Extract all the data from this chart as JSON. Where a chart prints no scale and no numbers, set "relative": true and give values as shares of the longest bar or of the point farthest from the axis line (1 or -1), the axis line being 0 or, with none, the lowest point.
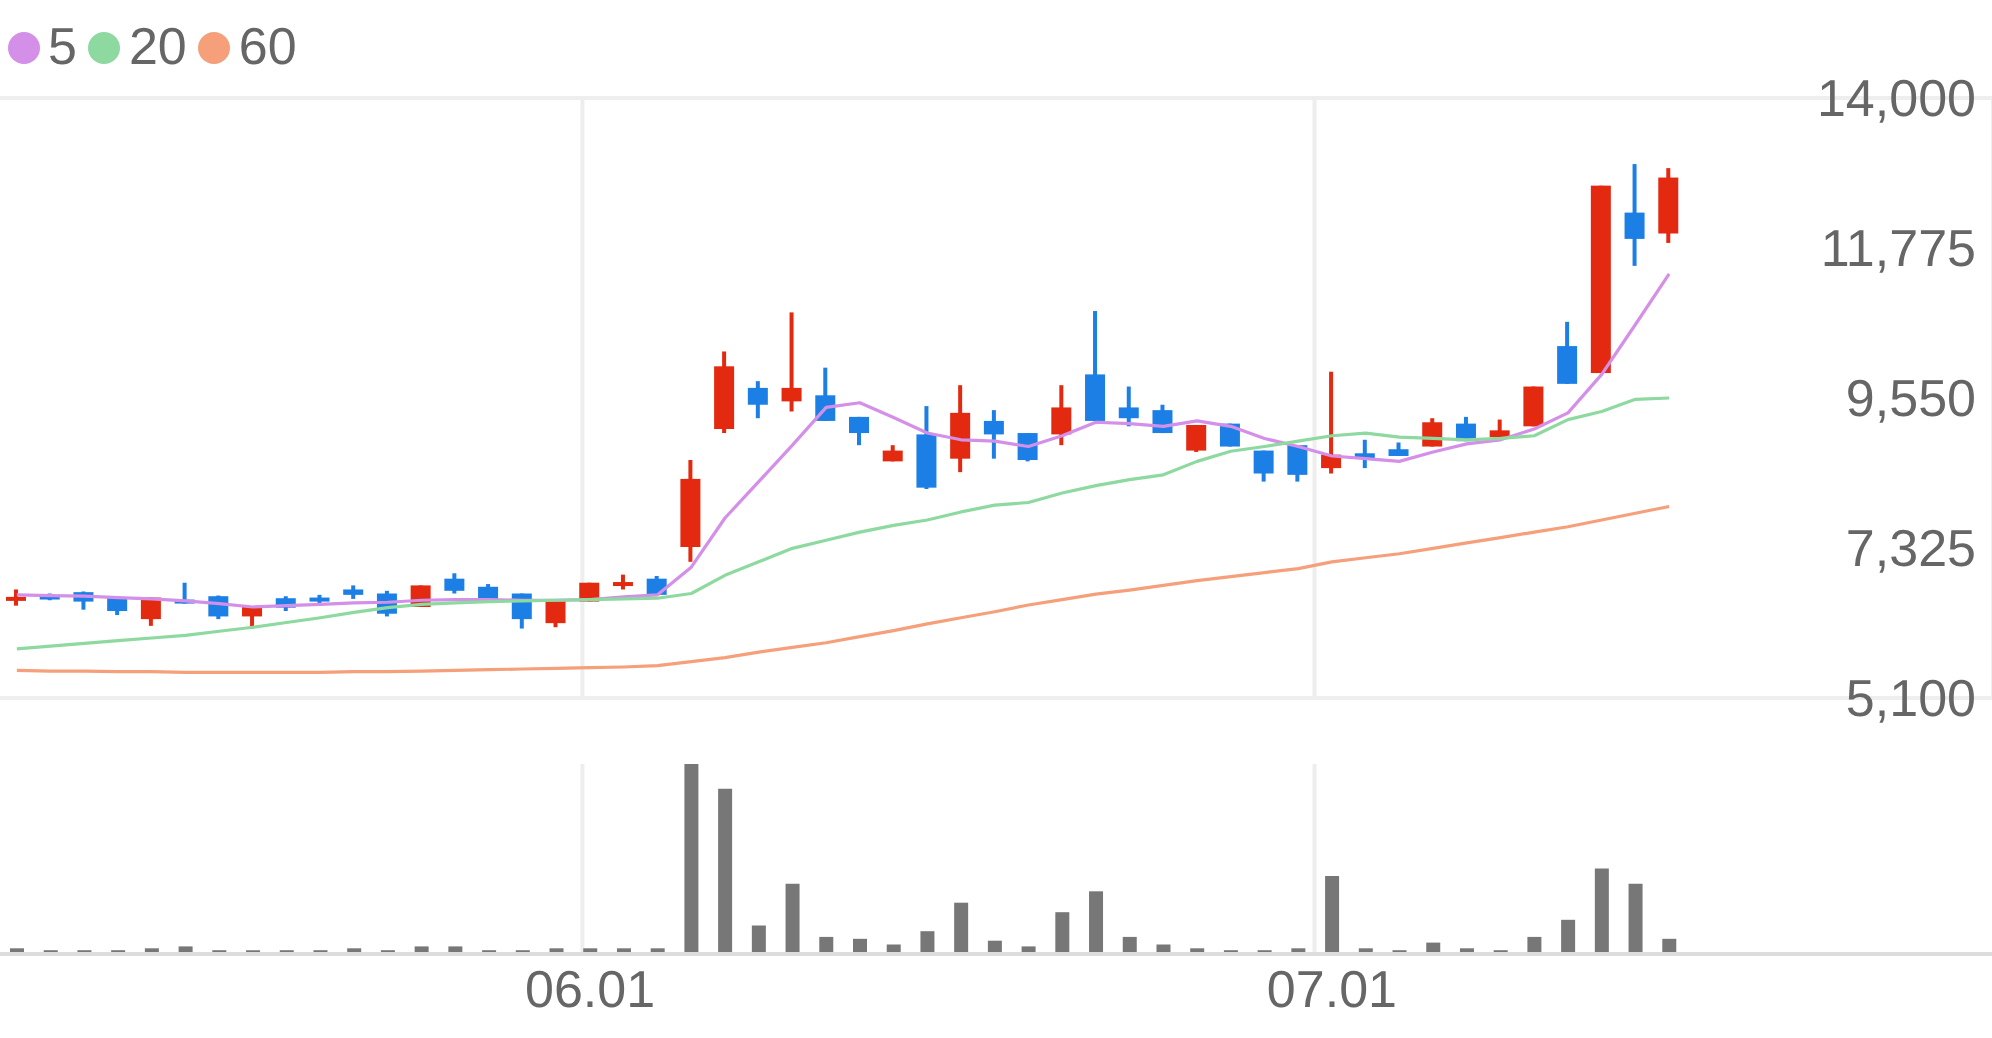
{
  "chart_data": [
    {
      "type": "candlestick",
      "categories": [
        null,
        null,
        null,
        null,
        null,
        null,
        null,
        null,
        null,
        null,
        null,
        null,
        null,
        null,
        null,
        null,
        null,
        "06.01",
        null,
        null,
        null,
        null,
        null,
        null,
        null,
        null,
        null,
        null,
        null,
        null,
        null,
        null,
        null,
        null,
        null,
        null,
        null,
        null,
        null,
        "07.01",
        null,
        null,
        null,
        null,
        null,
        null,
        null,
        null,
        null,
        null
      ],
      "ohlc": [
        [
          6560,
          6710,
          6470,
          6600
        ],
        [
          6620,
          6650,
          6550,
          6580
        ],
        [
          6670,
          6680,
          6410,
          6530
        ],
        [
          6590,
          6610,
          6330,
          6390
        ],
        [
          6270,
          6590,
          6170,
          6590
        ],
        [
          6560,
          6810,
          6500,
          6510
        ],
        [
          6610,
          6620,
          6270,
          6310
        ],
        [
          6310,
          6450,
          6130,
          6450
        ],
        [
          6580,
          6610,
          6390,
          6440
        ],
        [
          6590,
          6630,
          6470,
          6530
        ],
        [
          6710,
          6770,
          6570,
          6630
        ],
        [
          6650,
          6690,
          6310,
          6350
        ],
        [
          6450,
          6770,
          6450,
          6770
        ],
        [
          6870,
          6950,
          6650,
          6690
        ],
        [
          6750,
          6790,
          6570,
          6570
        ],
        [
          6650,
          6650,
          6130,
          6270
        ],
        [
          6210,
          6550,
          6150,
          6550
        ],
        [
          6530,
          6810,
          6530,
          6810
        ],
        [
          6790,
          6930,
          6710,
          6820
        ],
        [
          6870,
          6910,
          6630,
          6630
        ],
        [
          7340,
          8630,
          7120,
          8350
        ],
        [
          9090,
          10240,
          9030,
          10020
        ],
        [
          9700,
          9800,
          9250,
          9450
        ],
        [
          9500,
          10820,
          9350,
          9700
        ],
        [
          9590,
          10000,
          9210,
          9210
        ],
        [
          9270,
          9270,
          8850,
          9030
        ],
        [
          8610,
          8850,
          8610,
          8770
        ],
        [
          9010,
          9430,
          8200,
          8220
        ],
        [
          8650,
          9740,
          8450,
          9330
        ],
        [
          9210,
          9370,
          8650,
          9010
        ],
        [
          9030,
          9030,
          8610,
          8630
        ],
        [
          9010,
          9740,
          8850,
          9410
        ],
        [
          9900,
          10840,
          9210,
          9210
        ],
        [
          9410,
          9720,
          9130,
          9250
        ],
        [
          9370,
          9450,
          9030,
          9030
        ],
        [
          8770,
          9150,
          8750,
          9150
        ],
        [
          9170,
          9170,
          8830,
          8830
        ],
        [
          8770,
          8770,
          8310,
          8430
        ],
        [
          8850,
          8850,
          8310,
          8410
        ],
        [
          8510,
          9940,
          8430,
          8710
        ],
        [
          8730,
          8930,
          8510,
          8650
        ],
        [
          8790,
          8890,
          8690,
          8690
        ],
        [
          8830,
          9250,
          8830,
          9190
        ],
        [
          9170,
          9270,
          8910,
          8910
        ],
        [
          8970,
          9230,
          8970,
          9070
        ],
        [
          9130,
          9720,
          9130,
          9720
        ],
        [
          10320,
          10680,
          9760,
          9760
        ],
        [
          9920,
          12700,
          9920,
          12700
        ],
        [
          12300,
          13020,
          11510,
          11910
        ],
        [
          11990,
          12960,
          11850,
          12820
        ]
      ],
      "colors": [
        "#e3290f",
        "#1c7fe6",
        "#1c7fe6",
        "#1c7fe6",
        "#e3290f",
        "#1c7fe6",
        "#1c7fe6",
        "#e3290f",
        "#1c7fe6",
        "#1c7fe6",
        "#1c7fe6",
        "#1c7fe6",
        "#e3290f",
        "#1c7fe6",
        "#1c7fe6",
        "#1c7fe6",
        "#e3290f",
        "#e3290f",
        "#e3290f",
        "#1c7fe6",
        "#e3290f",
        "#e3290f",
        "#1c7fe6",
        "#e3290f",
        "#1c7fe6",
        "#1c7fe6",
        "#e3290f",
        "#1c7fe6",
        "#e3290f",
        "#1c7fe6",
        "#1c7fe6",
        "#e3290f",
        "#1c7fe6",
        "#1c7fe6",
        "#1c7fe6",
        "#e3290f",
        "#1c7fe6",
        "#1c7fe6",
        "#1c7fe6",
        "#e3290f",
        "#1c7fe6",
        "#1c7fe6",
        "#e3290f",
        "#1c7fe6",
        "#e3290f",
        "#e3290f",
        "#1c7fe6",
        "#e3290f",
        "#1c7fe6",
        "#e3290f"
      ],
      "series": [
        {
          "name": "5",
          "type": "line",
          "color": "#d48fe8",
          "values": [
            6630,
            6620,
            6610,
            6590,
            6570,
            6540,
            6500,
            6450,
            6470,
            6490,
            6510,
            6520,
            6550,
            6560,
            6560,
            6550,
            6550,
            6560,
            6600,
            6630,
            7040,
            7770,
            8310,
            8850,
            9410,
            9480,
            9260,
            9030,
            8930,
            8910,
            8830,
            8990,
            9190,
            9170,
            9130,
            9210,
            9130,
            8950,
            8830,
            8690,
            8650,
            8610,
            8750,
            8870,
            8930,
            9090,
            9330,
            9900,
            10640,
            11390
          ]
        },
        {
          "name": "20",
          "type": "line",
          "color": "#8dd9a0",
          "values": [
            5830,
            5870,
            5910,
            5950,
            5990,
            6030,
            6090,
            6150,
            6220,
            6290,
            6370,
            6440,
            6490,
            6510,
            6530,
            6540,
            6550,
            6560,
            6570,
            6580,
            6650,
            6920,
            7120,
            7320,
            7440,
            7560,
            7660,
            7740,
            7860,
            7960,
            8000,
            8140,
            8250,
            8340,
            8410,
            8610,
            8760,
            8830,
            8910,
            8990,
            9030,
            8970,
            8950,
            8930,
            8950,
            8990,
            9230,
            9350,
            9530,
            9550
          ]
        },
        {
          "name": "60",
          "type": "line",
          "color": "#f5a07a",
          "values": [
            5510,
            5500,
            5500,
            5490,
            5490,
            5480,
            5480,
            5480,
            5480,
            5480,
            5490,
            5490,
            5500,
            5510,
            5520,
            5530,
            5540,
            5550,
            5560,
            5580,
            5640,
            5700,
            5780,
            5850,
            5920,
            6010,
            6100,
            6200,
            6290,
            6380,
            6480,
            6560,
            6640,
            6700,
            6770,
            6840,
            6900,
            6960,
            7020,
            7120,
            7180,
            7240,
            7320,
            7400,
            7480,
            7560,
            7640,
            7740,
            7840,
            7940
          ]
        }
      ],
      "ylim": [
        5100,
        14000
      ],
      "yticks": [
        {
          "value": 5100,
          "label": "5,100"
        },
        {
          "value": 7325,
          "label": "7,325"
        },
        {
          "value": 9550,
          "label": "9,550"
        },
        {
          "value": 11775,
          "label": "11,775"
        },
        {
          "value": 14000,
          "label": "14,000"
        }
      ],
      "grid": true,
      "legend": "top left",
      "tick_labels": "y"
    },
    {
      "type": "bar",
      "relative": true,
      "categories": [
        null,
        null,
        null,
        null,
        null,
        null,
        null,
        null,
        null,
        null,
        null,
        null,
        null,
        null,
        null,
        null,
        null,
        "06.01",
        null,
        null,
        null,
        null,
        null,
        null,
        null,
        null,
        null,
        null,
        null,
        null,
        null,
        null,
        null,
        null,
        null,
        null,
        null,
        null,
        null,
        "07.01",
        null,
        null,
        null,
        null,
        null,
        null,
        null,
        null,
        null,
        null
      ],
      "color": "#777777",
      "values": [
        0.03,
        0.02,
        0.02,
        0.02,
        0.03,
        0.04,
        0.02,
        0.02,
        0.02,
        0.02,
        0.03,
        0.02,
        0.04,
        0.04,
        0.02,
        0.02,
        0.03,
        0.03,
        0.03,
        0.03,
        1,
        0.87,
        0.15,
        0.37,
        0.09,
        0.08,
        0.05,
        0.12,
        0.27,
        0.07,
        0.04,
        0.22,
        0.33,
        0.09,
        0.05,
        0.03,
        0.02,
        0.02,
        0.03,
        0.41,
        0.03,
        0.02,
        0.06,
        0.03,
        0.02,
        0.09,
        0.18,
        0.45,
        0.37,
        0.08
      ],
      "grid": "x",
      "tick_labels": "x"
    }
  ]
}
